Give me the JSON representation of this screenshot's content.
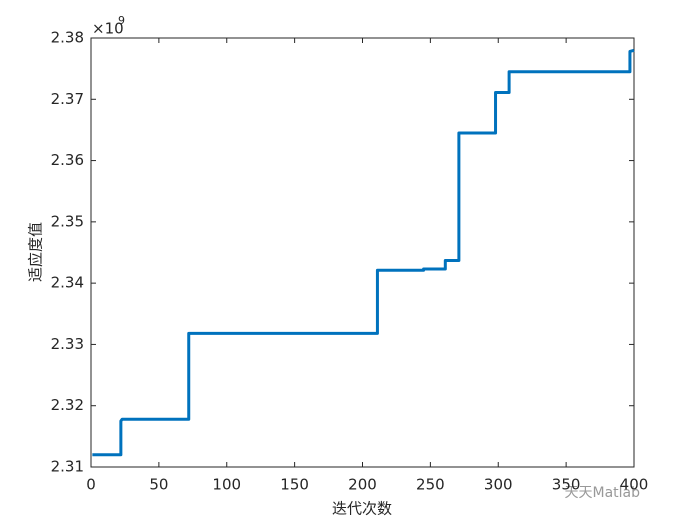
{
  "chart_data": {
    "type": "line",
    "xlabel": "迭代次数",
    "ylabel": "适应度值",
    "exponent_base": "×10",
    "exponent": "9",
    "x": [
      1,
      22,
      22,
      23,
      72,
      72,
      211,
      211,
      245,
      245,
      261,
      261,
      271,
      271,
      298,
      298,
      308,
      308,
      397,
      397,
      400
    ],
    "series": [
      {
        "color": "#0072bd",
        "values": [
          2.312,
          2.312,
          2.3175,
          2.3178,
          2.3178,
          2.3318,
          2.3318,
          2.3421,
          2.3421,
          2.3423,
          2.3423,
          2.3437,
          2.3437,
          2.3645,
          2.3645,
          2.3711,
          2.3711,
          2.3745,
          2.3745,
          2.3778,
          2.378
        ]
      }
    ],
    "xlim": [
      0,
      400
    ],
    "xticks": [
      0,
      50,
      100,
      150,
      200,
      250,
      300,
      350,
      400
    ],
    "ylim": [
      2.31,
      2.38
    ],
    "yticks": [
      2.31,
      2.32,
      2.33,
      2.34,
      2.35,
      2.36,
      2.37,
      2.38
    ],
    "grid": false
  },
  "watermark": "天天Matlab"
}
